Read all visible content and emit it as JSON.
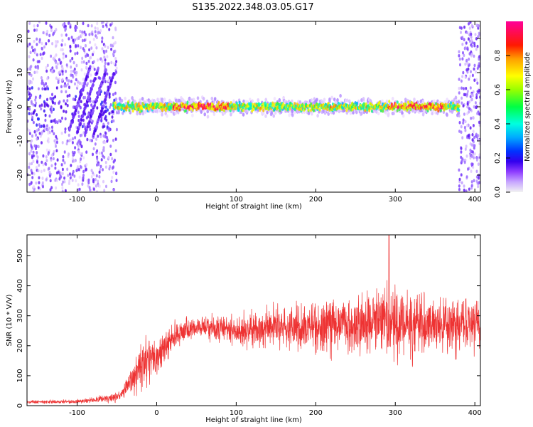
{
  "figure_title": "S135.2022.348.03.05.G17",
  "colors": {
    "snr_line": "#ee3333",
    "colormap": [
      "#ffffff",
      "#e9d5ff",
      "#b28cff",
      "#7a3cff",
      "#4b00e6",
      "#2233ff",
      "#00b3ff",
      "#00ffd5",
      "#22ee55",
      "#bff000",
      "#ffff00",
      "#ffb000",
      "#ff3300",
      "#ff0080"
    ]
  },
  "chart_data": [
    {
      "id": "spectrogram",
      "type": "heatmap",
      "title": "S135.2022.348.03.05.G17",
      "xlabel": "Height of straight line (km)",
      "ylabel": "Frequency (Hz)",
      "xlim": [
        -163,
        407
      ],
      "ylim": [
        -25,
        25
      ],
      "xticks": [
        -100,
        0,
        100,
        200,
        300,
        400
      ],
      "xtick_labels": [
        "-100",
        "0",
        "100",
        "200",
        "300",
        "400"
      ],
      "yticks": [
        -20,
        -10,
        0,
        10,
        20
      ],
      "ytick_labels": [
        "-20",
        "-10",
        "0",
        "10",
        "20"
      ],
      "colorbar": {
        "label": "Normalized spectral amplitude",
        "range": [
          0,
          1
        ],
        "ticks": [
          0.0,
          0.2,
          0.4,
          0.6,
          0.8
        ],
        "tick_labels": [
          "0.0",
          "0.2",
          "0.4",
          "0.6",
          "0.8"
        ]
      },
      "features": [
        {
          "name": "main-ridge",
          "x_start": -55,
          "x_end": 380,
          "frequency_hz": 0,
          "amplitude": "0.5-0.95"
        },
        {
          "name": "low-height-scatter",
          "x_start": -163,
          "x_end": -50,
          "frequency_range_hz": [
            -25,
            25
          ],
          "amplitude": "0.1-0.3"
        },
        {
          "name": "diagonal-tracks",
          "x_start": -110,
          "x_end": -55,
          "frequency_range_hz": [
            -8,
            15
          ],
          "amplitude": "0.2-0.35"
        },
        {
          "name": "high-height-scatter",
          "x_start": 380,
          "x_end": 407,
          "frequency_range_hz": [
            -25,
            25
          ],
          "amplitude": "0.1-0.9"
        }
      ]
    },
    {
      "id": "snr",
      "type": "line",
      "xlabel": "Height of straight line (km)",
      "ylabel": "SNR (10 * V/V)",
      "xlim": [
        -163,
        407
      ],
      "ylim": [
        0,
        570
      ],
      "xticks": [
        -100,
        0,
        100,
        200,
        300,
        400
      ],
      "xtick_labels": [
        "-100",
        "0",
        "100",
        "200",
        "300",
        "400"
      ],
      "yticks": [
        0,
        100,
        200,
        300,
        400,
        500
      ],
      "ytick_labels": [
        "0",
        "100",
        "200",
        "300",
        "400",
        "500"
      ],
      "series": [
        {
          "name": "SNR",
          "x": [
            -163,
            -140,
            -120,
            -100,
            -80,
            -60,
            -45,
            -35,
            -25,
            -15,
            -5,
            5,
            15,
            30,
            50,
            70,
            90,
            110,
            130,
            150,
            170,
            190,
            210,
            230,
            250,
            270,
            290,
            310,
            330,
            350,
            370,
            390,
            407
          ],
          "mean": [
            12,
            12,
            13,
            14,
            18,
            25,
            35,
            70,
            110,
            140,
            160,
            175,
            210,
            245,
            260,
            262,
            255,
            250,
            260,
            270,
            270,
            270,
            265,
            270,
            275,
            275,
            280,
            270,
            275,
            270,
            275,
            270,
            270
          ],
          "spread": [
            6,
            6,
            6,
            8,
            10,
            15,
            20,
            45,
            70,
            80,
            80,
            70,
            55,
            45,
            40,
            45,
            50,
            55,
            60,
            70,
            80,
            90,
            90,
            100,
            110,
            120,
            140,
            120,
            110,
            100,
            100,
            95,
            90
          ],
          "peak": {
            "x": 292,
            "y": 570
          }
        }
      ]
    }
  ]
}
